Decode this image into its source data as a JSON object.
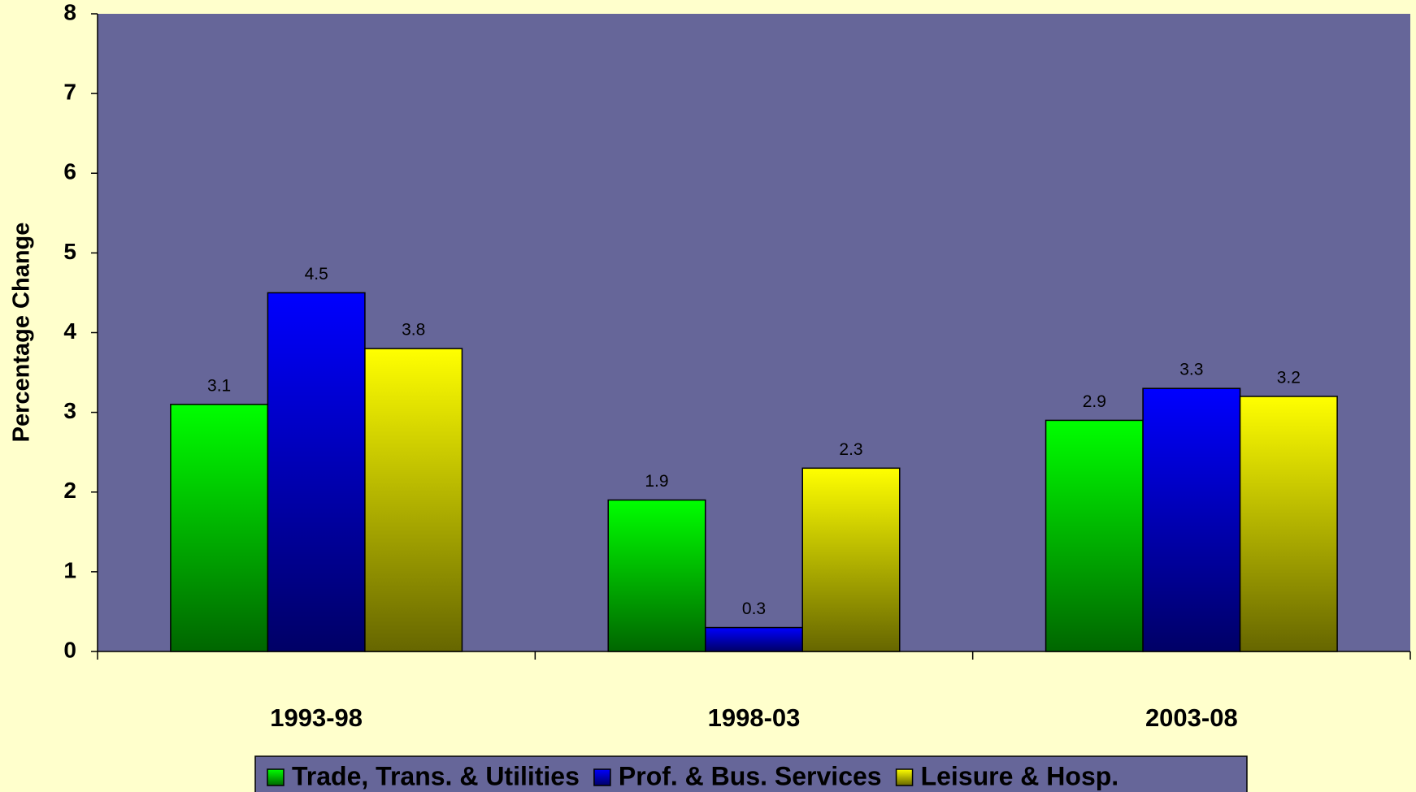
{
  "chart_data": {
    "type": "bar",
    "y_label": "Percentage Change",
    "categories": [
      "1993-98",
      "1998-03",
      "2003-08"
    ],
    "series": [
      {
        "name": "Trade, Trans. & Utilities",
        "color": "#00ff00",
        "values": [
          3.1,
          1.9,
          2.9
        ]
      },
      {
        "name": "Prof. & Bus. Services",
        "color": "#0000ff",
        "values": [
          4.5,
          0.3,
          3.3
        ]
      },
      {
        "name": "Leisure & Hosp.",
        "color": "#ffff00",
        "values": [
          3.8,
          2.3,
          3.2
        ]
      }
    ],
    "ylim": [
      0,
      8
    ],
    "yticks": [
      0,
      1,
      2,
      3,
      4,
      5,
      6,
      7,
      8
    ],
    "grid": false,
    "legend": "bottom"
  }
}
